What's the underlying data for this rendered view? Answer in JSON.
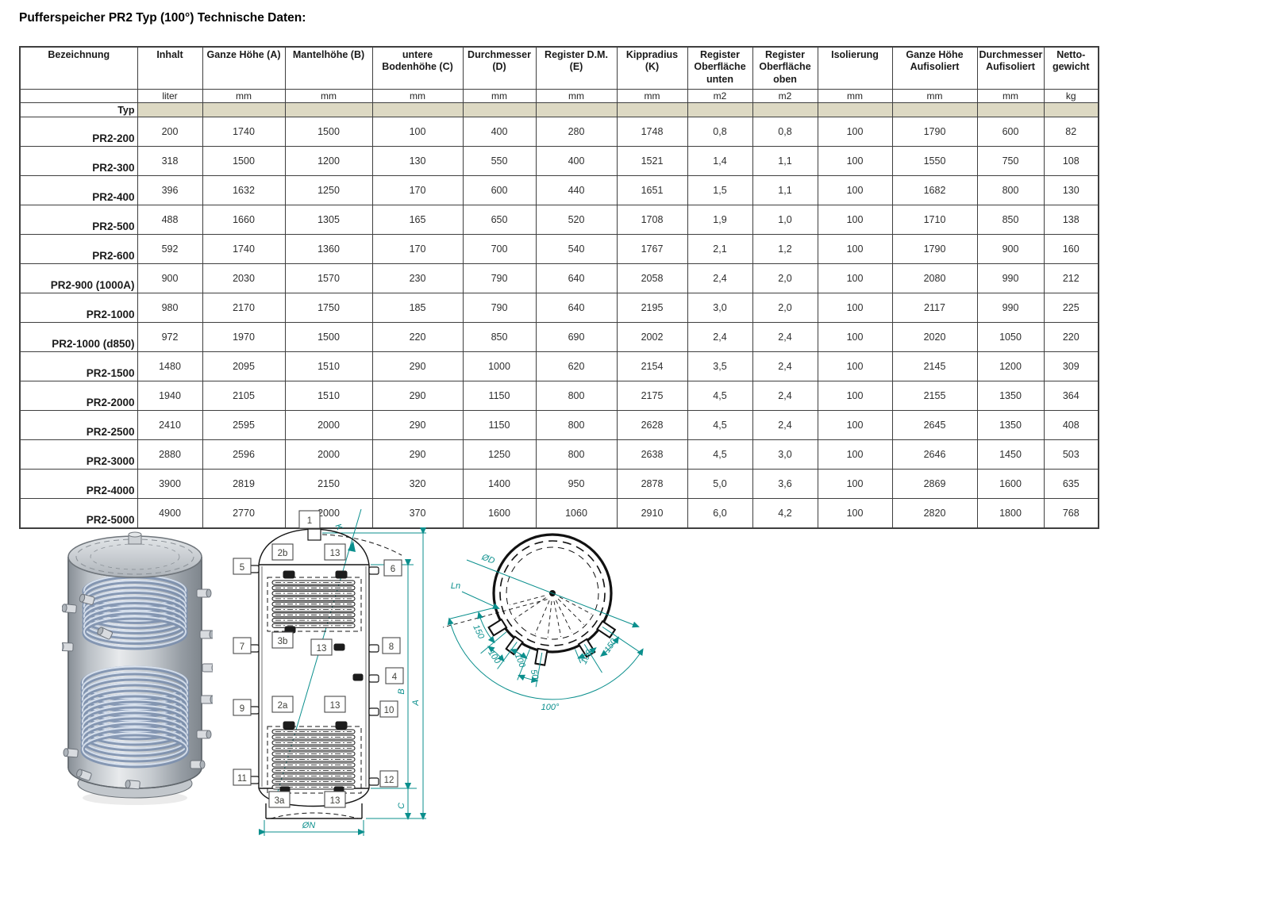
{
  "title": "Pufferspeicher PR2 Typ (100°) Technische Daten:",
  "colors": {
    "accent_teal": "#0b8f8d",
    "typ_band": "#ddd9c3",
    "table_border": "#3f3f3f"
  },
  "table": {
    "typ_label": "Typ",
    "columns": [
      {
        "label": "Bezeichnung",
        "unit": ""
      },
      {
        "label": "Inhalt",
        "unit": "liter"
      },
      {
        "label": "Ganze Höhe (A)",
        "unit": "mm"
      },
      {
        "label": "Mantelhöhe (B)",
        "unit": "mm"
      },
      {
        "label": "untere\nBodenhöhe (C)",
        "unit": "mm"
      },
      {
        "label": "Durchmesser\n(D)",
        "unit": "mm"
      },
      {
        "label": "Register D.M.\n(E)",
        "unit": "mm"
      },
      {
        "label": "Kippradius\n(K)",
        "unit": "mm"
      },
      {
        "label": "Register\nOberfläche\nunten",
        "unit": "m2"
      },
      {
        "label": "Register\nOberfläche\noben",
        "unit": "m2"
      },
      {
        "label": "Isolierung",
        "unit": "mm"
      },
      {
        "label": "Ganze Höhe\nAufisoliert",
        "unit": "mm"
      },
      {
        "label": "Durchmesser\nAufisoliert",
        "unit": "mm"
      },
      {
        "label": "Netto-\ngewicht",
        "unit": "kg"
      }
    ],
    "rows": [
      {
        "name": "PR2-200",
        "values": [
          "200",
          "1740",
          "1500",
          "100",
          "400",
          "280",
          "1748",
          "0,8",
          "0,8",
          "100",
          "1790",
          "600",
          "82"
        ]
      },
      {
        "name": "PR2-300",
        "values": [
          "318",
          "1500",
          "1200",
          "130",
          "550",
          "400",
          "1521",
          "1,4",
          "1,1",
          "100",
          "1550",
          "750",
          "108"
        ]
      },
      {
        "name": "PR2-400",
        "values": [
          "396",
          "1632",
          "1250",
          "170",
          "600",
          "440",
          "1651",
          "1,5",
          "1,1",
          "100",
          "1682",
          "800",
          "130"
        ]
      },
      {
        "name": "PR2-500",
        "values": [
          "488",
          "1660",
          "1305",
          "165",
          "650",
          "520",
          "1708",
          "1,9",
          "1,0",
          "100",
          "1710",
          "850",
          "138"
        ]
      },
      {
        "name": "PR2-600",
        "values": [
          "592",
          "1740",
          "1360",
          "170",
          "700",
          "540",
          "1767",
          "2,1",
          "1,2",
          "100",
          "1790",
          "900",
          "160"
        ]
      },
      {
        "name": "PR2-900 (1000A)",
        "values": [
          "900",
          "2030",
          "1570",
          "230",
          "790",
          "640",
          "2058",
          "2,4",
          "2,0",
          "100",
          "2080",
          "990",
          "212"
        ]
      },
      {
        "name": "PR2-1000",
        "values": [
          "980",
          "2170",
          "1750",
          "185",
          "790",
          "640",
          "2195",
          "3,0",
          "2,0",
          "100",
          "2117",
          "990",
          "225"
        ]
      },
      {
        "name": "PR2-1000 (d850)",
        "values": [
          "972",
          "1970",
          "1500",
          "220",
          "850",
          "690",
          "2002",
          "2,4",
          "2,4",
          "100",
          "2020",
          "1050",
          "220"
        ]
      },
      {
        "name": "PR2-1500",
        "values": [
          "1480",
          "2095",
          "1510",
          "290",
          "1000",
          "620",
          "2154",
          "3,5",
          "2,4",
          "100",
          "2145",
          "1200",
          "309"
        ]
      },
      {
        "name": "PR2-2000",
        "values": [
          "1940",
          "2105",
          "1510",
          "290",
          "1150",
          "800",
          "2175",
          "4,5",
          "2,4",
          "100",
          "2155",
          "1350",
          "364"
        ]
      },
      {
        "name": "PR2-2500",
        "values": [
          "2410",
          "2595",
          "2000",
          "290",
          "1150",
          "800",
          "2628",
          "4,5",
          "2,4",
          "100",
          "2645",
          "1350",
          "408"
        ]
      },
      {
        "name": "PR2-3000",
        "values": [
          "2880",
          "2596",
          "2000",
          "290",
          "1250",
          "800",
          "2638",
          "4,5",
          "3,0",
          "100",
          "2646",
          "1450",
          "503"
        ]
      },
      {
        "name": "PR2-4000",
        "values": [
          "3900",
          "2819",
          "2150",
          "320",
          "1400",
          "950",
          "2878",
          "5,0",
          "3,6",
          "100",
          "2869",
          "1600",
          "635"
        ]
      },
      {
        "name": "PR2-5000",
        "values": [
          "4900",
          "2770",
          "2000",
          "370",
          "1600",
          "1060",
          "2910",
          "6,0",
          "4,2",
          "100",
          "2820",
          "1800",
          "768"
        ]
      }
    ]
  },
  "front_view": {
    "labels": {
      "p1": "1",
      "p2a": "2a",
      "p2b": "2b",
      "p3a": "3a",
      "p3b": "3b",
      "p4": "4",
      "p5": "5",
      "p6": "6",
      "p7": "7",
      "p8": "8",
      "p9": "9",
      "p10": "10",
      "p11": "11",
      "p12": "12",
      "p13": "13"
    },
    "dims": {
      "A": "A",
      "B": "B",
      "C": "C",
      "K": "K",
      "diameter": "ØN"
    }
  },
  "top_view": {
    "dims": {
      "diameter": "ØD",
      "length": "Ln",
      "total_angle": "100°"
    },
    "angles": [
      "150",
      "100",
      "100",
      "50",
      "100",
      "150"
    ]
  }
}
